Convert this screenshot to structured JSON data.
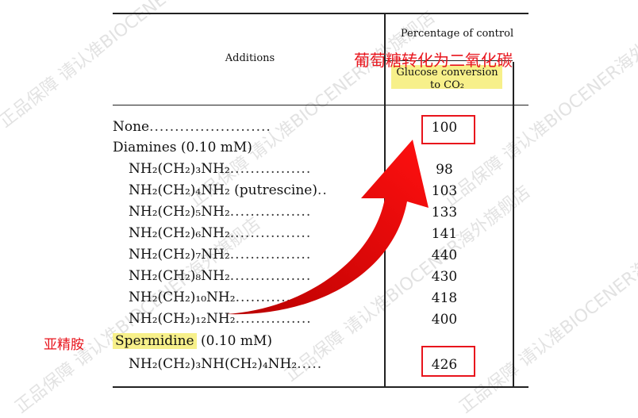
{
  "watermark": "正品保障 请认准BIOCENER海外旗舰店",
  "table": {
    "col1_header": "Additions",
    "col2_header": "Percentage of control",
    "col2_subheader_line1": "Glucose conversion",
    "col2_subheader_line2": "to CO₂",
    "rows": [
      {
        "label": "None",
        "dots": "........................",
        "value": "100"
      },
      {
        "label": "Diamines (0.10 mM)",
        "value": ""
      },
      {
        "label": "NH₂(CH₂)₃NH₂",
        "dots": "................",
        "value": "98"
      },
      {
        "label": "NH₂(CH₂)₄NH₂ (putrescine)",
        "dots": "..",
        "value": "103"
      },
      {
        "label": "NH₂(CH₂)₅NH₂",
        "dots": "................",
        "value": "133"
      },
      {
        "label": "NH₂(CH₂)₆NH₂",
        "dots": "................",
        "value": "141"
      },
      {
        "label": "NH₂(CH₂)₇NH₂",
        "dots": "................",
        "value": "440"
      },
      {
        "label": "NH₂(CH₂)₈NH₂",
        "dots": "................",
        "value": "430"
      },
      {
        "label": "NH₂(CH₂)₁₀NH₂",
        "dots": "...............",
        "value": "418"
      },
      {
        "label": "NH₂(CH₂)₁₂NH₂",
        "dots": "...............",
        "value": "400"
      },
      {
        "label": "Spermidine",
        "suffix": " (0.10 mM)",
        "value": ""
      },
      {
        "label": "NH₂(CH₂)₃NH(CH₂)₄NH₂",
        "dots": ".....",
        "value": "426"
      }
    ]
  },
  "annotations": {
    "glucose_to_co2": "葡萄糖转化为二氧化碳",
    "spermidine": "亚精胺",
    "highlight_color": "#f7f08a",
    "annotation_color": "#e8141c"
  }
}
